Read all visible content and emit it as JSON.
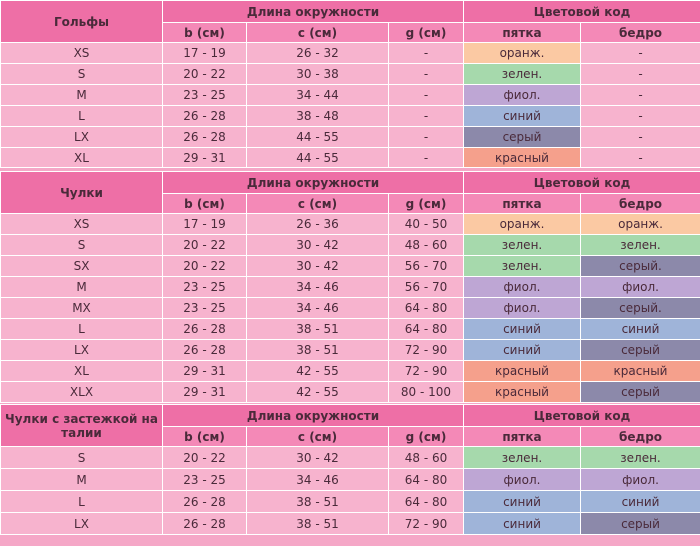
{
  "colors": {
    "header": "#ee6fa6",
    "subheader": "#f489b7",
    "cell": "#f7b3ce",
    "color_swatches": {
      "оранж.": "#fbc9a3",
      "зелен.": "#a6d9ac",
      "фиол.": "#bea6d4",
      "синий": "#9fb4d9",
      "серый": "#8c89aa",
      "серый.": "#8c89aa",
      "красный": "#f5a08c"
    }
  },
  "tables": [
    {
      "title": "Гольфы",
      "group_header": "Длина окружности",
      "color_header": "Цветовой код",
      "columns": [
        "b (см)",
        "c (см)",
        "g (см)",
        "пятка",
        "бедро"
      ],
      "rows": [
        {
          "size": "XS",
          "b": "17 - 19",
          "c": "26 - 32",
          "g": "-",
          "heel": "оранж.",
          "thigh": "-"
        },
        {
          "size": "S",
          "b": "20 - 22",
          "c": "30 - 38",
          "g": "-",
          "heel": "зелен.",
          "thigh": "-"
        },
        {
          "size": "M",
          "b": "23 - 25",
          "c": "34 - 44",
          "g": "-",
          "heel": "фиол.",
          "thigh": "-"
        },
        {
          "size": "L",
          "b": "26 - 28",
          "c": "38 - 48",
          "g": "-",
          "heel": "синий",
          "thigh": "-"
        },
        {
          "size": "LX",
          "b": "26 - 28",
          "c": "44 - 55",
          "g": "-",
          "heel": "серый",
          "thigh": "-"
        },
        {
          "size": "XL",
          "b": "29 - 31",
          "c": "44 - 55",
          "g": "-",
          "heel": "красный",
          "thigh": "-"
        }
      ]
    },
    {
      "title": "Чулки",
      "group_header": "Длина окружности",
      "color_header": "Цветовой код",
      "columns": [
        "b (см)",
        "c (см)",
        "g (см)",
        "пятка",
        "бедро"
      ],
      "rows": [
        {
          "size": "XS",
          "b": "17 - 19",
          "c": "26 - 36",
          "g": "40 - 50",
          "heel": "оранж.",
          "thigh": "оранж."
        },
        {
          "size": "S",
          "b": "20 - 22",
          "c": "30 - 42",
          "g": "48 - 60",
          "heel": "зелен.",
          "thigh": "зелен."
        },
        {
          "size": "SX",
          "b": "20 - 22",
          "c": "30 - 42",
          "g": "56 - 70",
          "heel": "зелен.",
          "thigh": "серый."
        },
        {
          "size": "M",
          "b": "23 - 25",
          "c": "34 - 46",
          "g": "56 - 70",
          "heel": "фиол.",
          "thigh": "фиол."
        },
        {
          "size": "MX",
          "b": "23 - 25",
          "c": "34 - 46",
          "g": "64 - 80",
          "heel": "фиол.",
          "thigh": "серый."
        },
        {
          "size": "L",
          "b": "26 - 28",
          "c": "38 - 51",
          "g": "64 - 80",
          "heel": "синий",
          "thigh": "синий"
        },
        {
          "size": "LX",
          "b": "26 - 28",
          "c": "38 - 51",
          "g": "72 - 90",
          "heel": "синий",
          "thigh": "серый"
        },
        {
          "size": "XL",
          "b": "29 - 31",
          "c": "42 - 55",
          "g": "72 - 90",
          "heel": "красный",
          "thigh": "красный"
        },
        {
          "size": "XLX",
          "b": "29 - 31",
          "c": "42 - 55",
          "g": "80 - 100",
          "heel": "красный",
          "thigh": "серый"
        }
      ]
    },
    {
      "title": "Чулки с застежкой на талии",
      "group_header": "Длина окружности",
      "color_header": "Цветовой код",
      "columns": [
        "b (см)",
        "c (см)",
        "g (см)",
        "пятка",
        "бедро"
      ],
      "rows": [
        {
          "size": "S",
          "b": "20 - 22",
          "c": "30 - 42",
          "g": "48 - 60",
          "heel": "зелен.",
          "thigh": "зелен."
        },
        {
          "size": "M",
          "b": "23 - 25",
          "c": "34 - 46",
          "g": "64 - 80",
          "heel": "фиол.",
          "thigh": "фиол."
        },
        {
          "size": "L",
          "b": "26 - 28",
          "c": "38 - 51",
          "g": "64 - 80",
          "heel": "синий",
          "thigh": "синий"
        },
        {
          "size": "LX",
          "b": "26 - 28",
          "c": "38 - 51",
          "g": "72 - 90",
          "heel": "синий",
          "thigh": "серый"
        }
      ]
    }
  ]
}
